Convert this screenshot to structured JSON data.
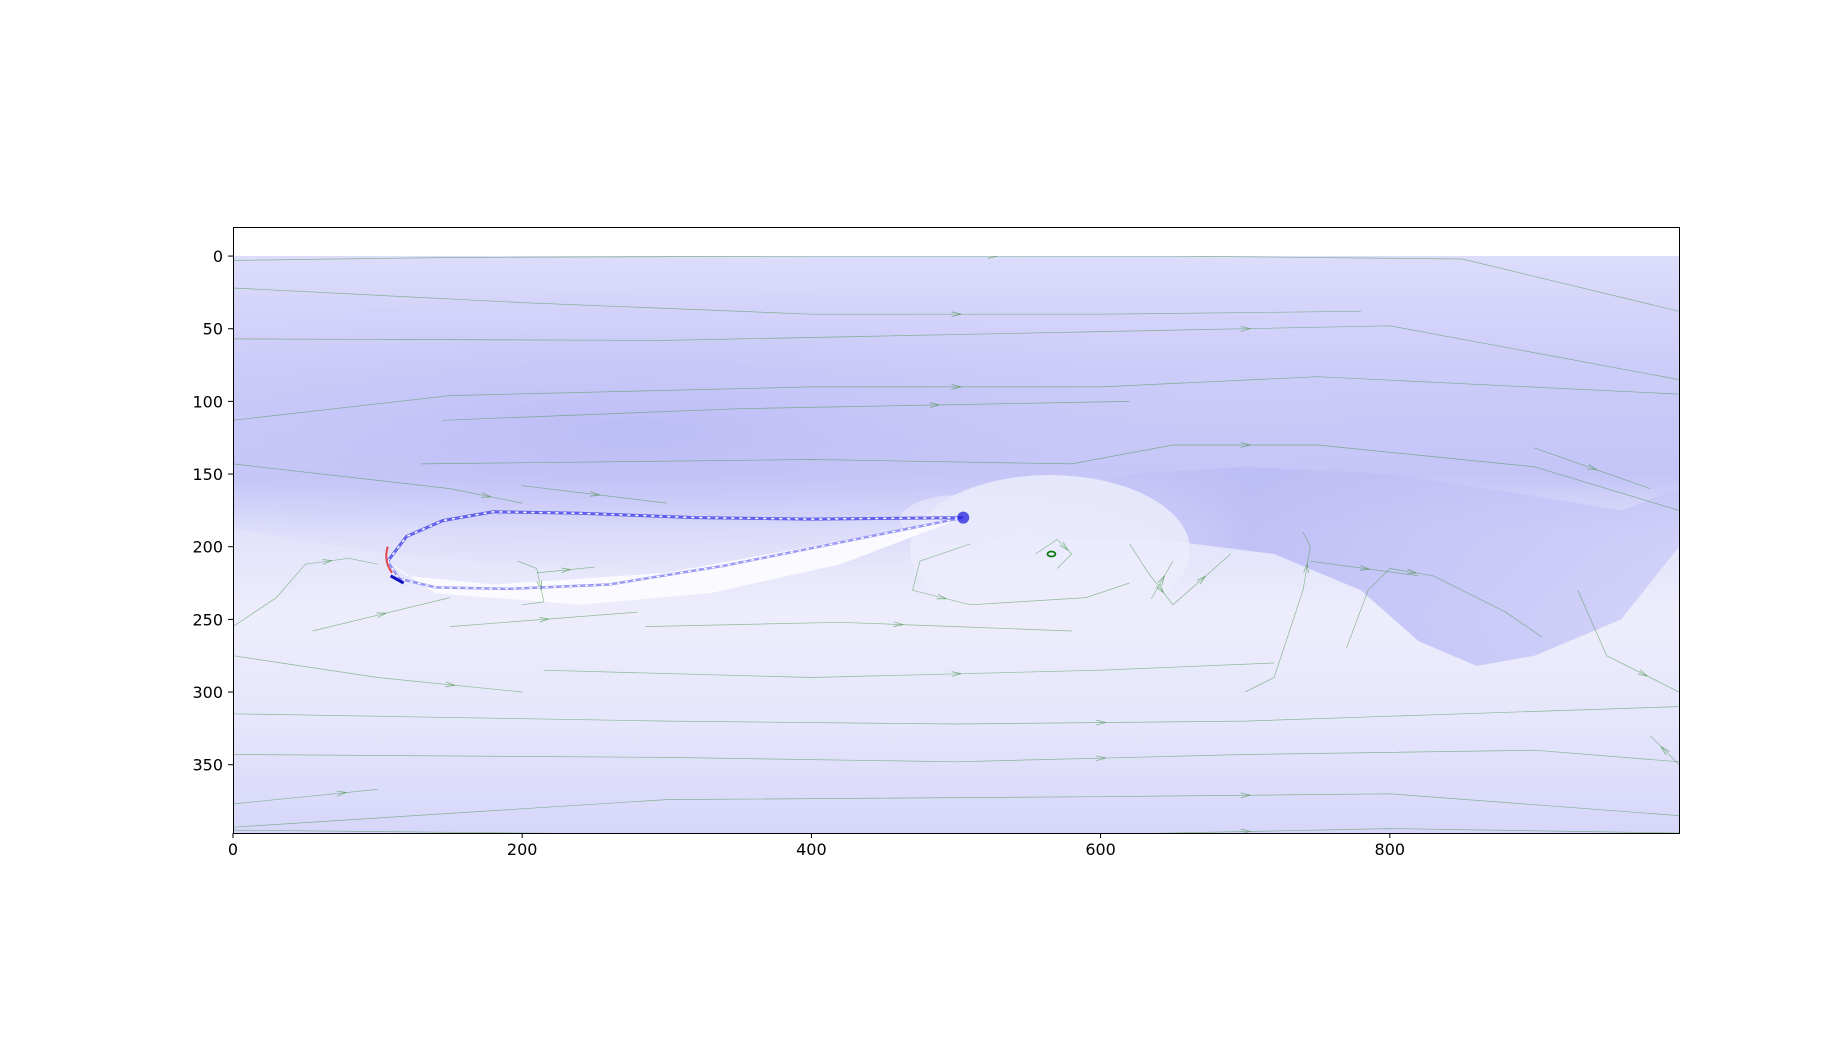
{
  "chart_data": {
    "type": "heatmap",
    "subtype": "flow-field-with-streamlines",
    "title": "",
    "xlabel": "",
    "ylabel": "",
    "xlim": [
      0,
      1000
    ],
    "ylim": [
      397,
      -20
    ],
    "y_axis_inverted": true,
    "grid": false,
    "x_ticks": [
      0,
      200,
      400,
      600,
      800
    ],
    "y_ticks": [
      0,
      50,
      100,
      150,
      200,
      250,
      300,
      350
    ],
    "colormap": "bwr",
    "colors": {
      "field_low": "#1a1aff",
      "field_mid": "#ffffff",
      "field_high": "#ff1a1a",
      "streamline": "#3f8f3f",
      "axes": "#000000"
    },
    "airfoil": {
      "leading_edge": [
        107,
        210
      ],
      "trailing_edge": [
        505,
        180
      ],
      "upper_surface": [
        [
          107,
          210
        ],
        [
          120,
          193
        ],
        [
          145,
          182
        ],
        [
          180,
          176
        ],
        [
          240,
          177
        ],
        [
          320,
          180
        ],
        [
          400,
          181
        ],
        [
          505,
          180
        ]
      ],
      "lower_surface": [
        [
          107,
          210
        ],
        [
          115,
          222
        ],
        [
          140,
          228
        ],
        [
          190,
          229
        ],
        [
          260,
          226
        ],
        [
          340,
          213
        ],
        [
          420,
          197
        ],
        [
          505,
          180
        ]
      ]
    },
    "vortex_center": [
      566,
      205
    ],
    "streamlines": [
      [
        [
          0,
          3
        ],
        [
          150,
          1
        ],
        [
          400,
          0
        ],
        [
          650,
          0
        ],
        [
          850,
          2
        ],
        [
          1000,
          38
        ]
      ],
      [
        [
          0,
          22
        ],
        [
          200,
          32
        ],
        [
          400,
          40
        ],
        [
          600,
          40
        ],
        [
          780,
          38
        ]
      ],
      [
        [
          0,
          57
        ],
        [
          300,
          58
        ],
        [
          600,
          52
        ],
        [
          800,
          48
        ],
        [
          1000,
          85
        ]
      ],
      [
        [
          0,
          113
        ],
        [
          150,
          96
        ],
        [
          400,
          90
        ],
        [
          600,
          90
        ],
        [
          750,
          83
        ],
        [
          1000,
          95
        ]
      ],
      [
        [
          145,
          113
        ],
        [
          350,
          105
        ],
        [
          620,
          100
        ]
      ],
      [
        [
          0,
          143
        ],
        [
          150,
          160
        ],
        [
          200,
          170
        ]
      ],
      [
        [
          130,
          143
        ],
        [
          400,
          140
        ],
        [
          580,
          143
        ],
        [
          650,
          130
        ],
        [
          750,
          130
        ],
        [
          900,
          145
        ],
        [
          1000,
          175
        ]
      ],
      [
        [
          200,
          158
        ],
        [
          300,
          170
        ]
      ],
      [
        [
          1000,
          350
        ],
        [
          980,
          330
        ]
      ],
      [
        [
          745,
          210
        ],
        [
          820,
          220
        ]
      ],
      [
        [
          900,
          132
        ],
        [
          980,
          160
        ]
      ],
      [
        [
          0,
          255
        ],
        [
          30,
          235
        ],
        [
          50,
          212
        ],
        [
          80,
          208
        ],
        [
          100,
          212
        ]
      ],
      [
        [
          55,
          258
        ],
        [
          150,
          235
        ]
      ],
      [
        [
          197,
          210
        ],
        [
          210,
          215
        ],
        [
          215,
          238
        ],
        [
          200,
          240
        ]
      ],
      [
        [
          210,
          218
        ],
        [
          250,
          214
        ]
      ],
      [
        [
          150,
          255
        ],
        [
          280,
          245
        ]
      ],
      [
        [
          285,
          255
        ],
        [
          420,
          252
        ],
        [
          500,
          255
        ],
        [
          580,
          258
        ]
      ],
      [
        [
          510,
          198
        ],
        [
          475,
          210
        ],
        [
          470,
          230
        ],
        [
          510,
          240
        ],
        [
          590,
          235
        ],
        [
          620,
          225
        ]
      ],
      [
        [
          555,
          205
        ],
        [
          570,
          195
        ],
        [
          580,
          205
        ],
        [
          570,
          215
        ]
      ],
      [
        [
          620,
          198
        ],
        [
          633,
          218
        ],
        [
          650,
          240
        ]
      ],
      [
        [
          635,
          236
        ],
        [
          650,
          210
        ]
      ],
      [
        [
          650,
          240
        ],
        [
          690,
          205
        ]
      ],
      [
        [
          700,
          300
        ],
        [
          720,
          290
        ],
        [
          740,
          230
        ],
        [
          745,
          200
        ],
        [
          740,
          190
        ]
      ],
      [
        [
          770,
          270
        ],
        [
          785,
          230
        ],
        [
          800,
          215
        ],
        [
          830,
          220
        ],
        [
          880,
          245
        ],
        [
          905,
          262
        ]
      ],
      [
        [
          930,
          230
        ],
        [
          950,
          275
        ],
        [
          1000,
          300
        ]
      ],
      [
        [
          0,
          275
        ],
        [
          100,
          290
        ],
        [
          200,
          300
        ]
      ],
      [
        [
          215,
          285
        ],
        [
          400,
          290
        ],
        [
          600,
          285
        ],
        [
          720,
          280
        ]
      ],
      [
        [
          0,
          315
        ],
        [
          300,
          320
        ],
        [
          500,
          322
        ],
        [
          700,
          320
        ],
        [
          850,
          315
        ],
        [
          1000,
          310
        ]
      ],
      [
        [
          0,
          343
        ],
        [
          300,
          345
        ],
        [
          500,
          348
        ],
        [
          700,
          343
        ],
        [
          900,
          340
        ],
        [
          1000,
          348
        ]
      ],
      [
        [
          0,
          377
        ],
        [
          50,
          372
        ],
        [
          100,
          367
        ]
      ],
      [
        [
          0,
          393
        ],
        [
          300,
          374
        ],
        [
          600,
          372
        ],
        [
          800,
          370
        ],
        [
          1000,
          385
        ]
      ],
      [
        [
          0,
          395
        ],
        [
          300,
          398
        ],
        [
          600,
          398
        ],
        [
          800,
          394
        ],
        [
          1000,
          397
        ]
      ]
    ]
  }
}
